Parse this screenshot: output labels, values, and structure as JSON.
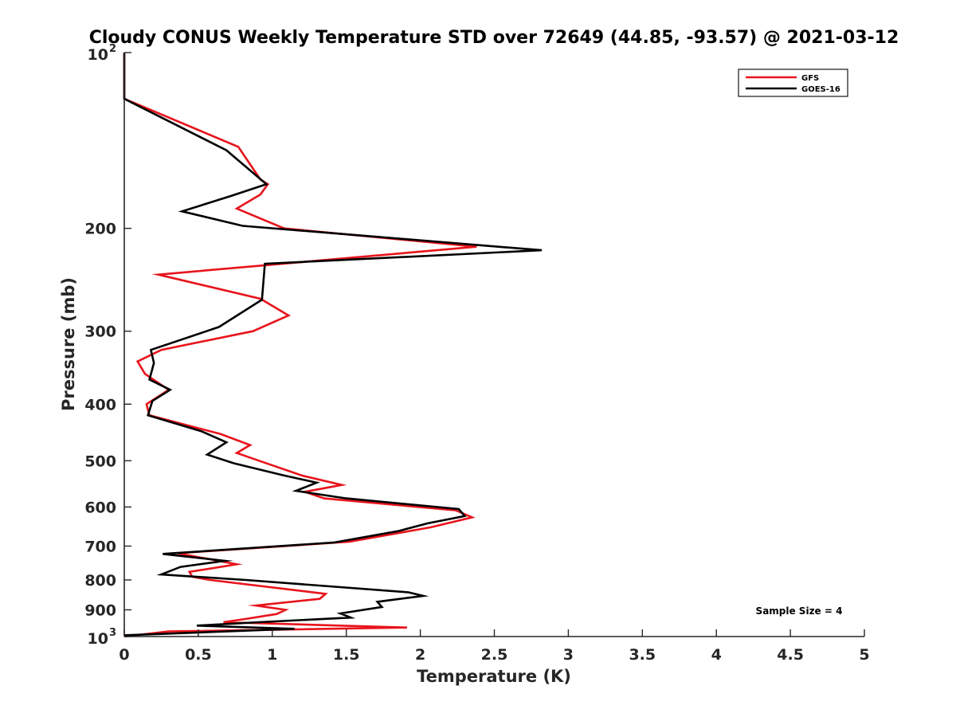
{
  "chart_data": {
    "type": "line",
    "title": "Cloudy CONUS Weekly Temperature STD over 72649 (44.85, -93.57) @ 2021-03-12",
    "xlabel": "Temperature (K)",
    "ylabel": "Pressure (mb)",
    "xlim": [
      0,
      5
    ],
    "ylim": [
      1000,
      100
    ],
    "y_scale": "log",
    "y_reversed": true,
    "grid": false,
    "legend_position": "top-right",
    "x_ticks": [
      {
        "value": 0,
        "label": "0"
      },
      {
        "value": 0.5,
        "label": "0.5"
      },
      {
        "value": 1,
        "label": "1"
      },
      {
        "value": 1.5,
        "label": "1.5"
      },
      {
        "value": 2,
        "label": "2"
      },
      {
        "value": 2.5,
        "label": "2.5"
      },
      {
        "value": 3,
        "label": "3"
      },
      {
        "value": 3.5,
        "label": "3.5"
      },
      {
        "value": 4,
        "label": "4"
      },
      {
        "value": 4.5,
        "label": "4.5"
      },
      {
        "value": 5,
        "label": "5"
      }
    ],
    "y_ticks": [
      {
        "value": 100,
        "base": "10",
        "exp": "2"
      },
      {
        "value": 200,
        "label": "200"
      },
      {
        "value": 300,
        "label": "300"
      },
      {
        "value": 400,
        "label": "400"
      },
      {
        "value": 500,
        "label": "500"
      },
      {
        "value": 600,
        "label": "600"
      },
      {
        "value": 700,
        "label": "700"
      },
      {
        "value": 800,
        "label": "800"
      },
      {
        "value": 900,
        "label": "900"
      },
      {
        "value": 1000,
        "base": "10",
        "exp": "3"
      }
    ],
    "series": [
      {
        "name": "GFS",
        "color": "#e8141c",
        "points": [
          [
            0.0,
            100
          ],
          [
            0.0,
            120
          ],
          [
            0.77,
            145
          ],
          [
            0.92,
            165
          ],
          [
            0.97,
            168
          ],
          [
            0.92,
            175
          ],
          [
            0.76,
            185
          ],
          [
            1.08,
            200
          ],
          [
            2.38,
            215
          ],
          [
            0.23,
            240
          ],
          [
            0.92,
            264
          ],
          [
            1.11,
            282
          ],
          [
            0.87,
            300
          ],
          [
            0.25,
            323
          ],
          [
            0.09,
            338
          ],
          [
            0.14,
            355
          ],
          [
            0.3,
            378
          ],
          [
            0.15,
            400
          ],
          [
            0.17,
            418
          ],
          [
            0.65,
            450
          ],
          [
            0.85,
            470
          ],
          [
            0.76,
            485
          ],
          [
            0.91,
            500
          ],
          [
            1.2,
            530
          ],
          [
            1.47,
            550
          ],
          [
            1.22,
            565
          ],
          [
            1.35,
            580
          ],
          [
            2.24,
            608
          ],
          [
            2.35,
            625
          ],
          [
            2.07,
            650
          ],
          [
            1.52,
            688
          ],
          [
            0.36,
            720
          ],
          [
            0.76,
            752
          ],
          [
            0.44,
            775
          ],
          [
            0.46,
            790
          ],
          [
            0.58,
            800
          ],
          [
            1.36,
            845
          ],
          [
            1.32,
            862
          ],
          [
            0.89,
            885
          ],
          [
            1.09,
            900
          ],
          [
            1.03,
            915
          ],
          [
            0.83,
            932
          ],
          [
            0.67,
            945
          ],
          [
            1.91,
            965
          ],
          [
            0.3,
            980
          ],
          [
            0.0,
            1000
          ]
        ]
      },
      {
        "name": "GOES-16",
        "color": "#000000",
        "points": [
          [
            0.0,
            100
          ],
          [
            0.0,
            120
          ],
          [
            0.69,
            147
          ],
          [
            0.96,
            168
          ],
          [
            0.72,
            176
          ],
          [
            0.39,
            187
          ],
          [
            0.8,
            198
          ],
          [
            2.82,
            218
          ],
          [
            0.95,
            230
          ],
          [
            0.93,
            265
          ],
          [
            0.64,
            295
          ],
          [
            0.18,
            323
          ],
          [
            0.2,
            340
          ],
          [
            0.17,
            363
          ],
          [
            0.31,
            378
          ],
          [
            0.19,
            395
          ],
          [
            0.16,
            418
          ],
          [
            0.52,
            445
          ],
          [
            0.69,
            465
          ],
          [
            0.56,
            488
          ],
          [
            0.74,
            505
          ],
          [
            1.08,
            530
          ],
          [
            1.3,
            545
          ],
          [
            1.16,
            563
          ],
          [
            1.5,
            580
          ],
          [
            2.26,
            605
          ],
          [
            2.3,
            622
          ],
          [
            2.05,
            640
          ],
          [
            1.85,
            660
          ],
          [
            1.42,
            690
          ],
          [
            0.26,
            722
          ],
          [
            0.68,
            742
          ],
          [
            0.38,
            760
          ],
          [
            0.25,
            783
          ],
          [
            0.82,
            800
          ],
          [
            1.92,
            840
          ],
          [
            2.02,
            852
          ],
          [
            1.71,
            872
          ],
          [
            1.74,
            890
          ],
          [
            1.46,
            913
          ],
          [
            1.53,
            928
          ],
          [
            0.91,
            945
          ],
          [
            0.49,
            958
          ],
          [
            1.15,
            970
          ],
          [
            0.0,
            995
          ]
        ]
      }
    ],
    "annotation": "Sample Size = 4"
  }
}
